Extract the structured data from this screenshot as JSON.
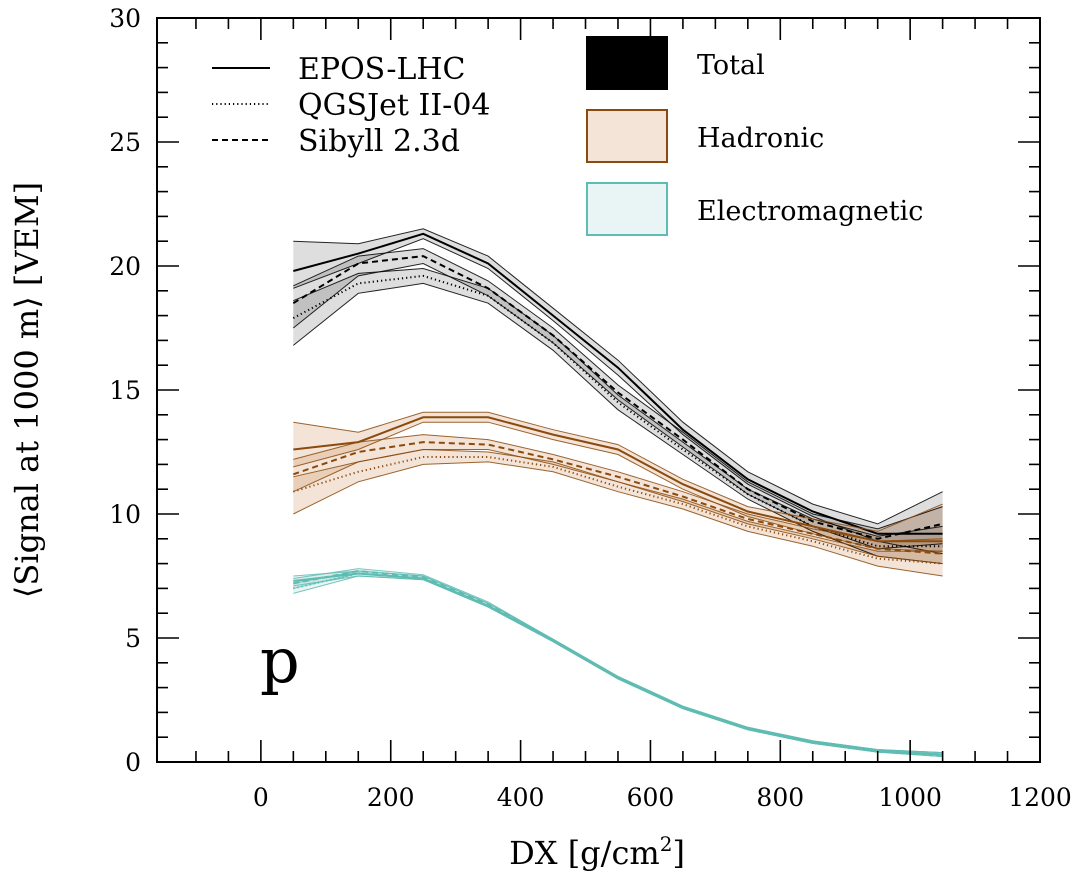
{
  "chart_data": {
    "type": "line",
    "title": "",
    "xlabel": "DX [g/cm",
    "xlabel_sup": "2",
    "xlabel_close": "]",
    "ylabel": "⟨Signal at 1000 m⟩ [VEM]",
    "xlim": [
      -160,
      1200
    ],
    "ylim": [
      0,
      30
    ],
    "x_ticks": [
      0,
      200,
      400,
      600,
      800,
      1000,
      1200
    ],
    "y_ticks": [
      0,
      5,
      10,
      15,
      20,
      25,
      30
    ],
    "annotation": "p",
    "x": [
      50,
      150,
      250,
      350,
      450,
      550,
      650,
      750,
      850,
      950,
      1050
    ],
    "legend_models": [
      {
        "name": "EPOS-LHC",
        "style": "solid"
      },
      {
        "name": "QGSJet II-04",
        "style": "dotted"
      },
      {
        "name": "Sibyll 2.3d",
        "style": "dashed"
      }
    ],
    "legend_components": [
      {
        "name": "Total",
        "key": "total"
      },
      {
        "name": "Hadronic",
        "key": "hadronic"
      },
      {
        "name": "Electromagnetic",
        "key": "em"
      }
    ],
    "components": {
      "total": {
        "line": "#000000",
        "fill": "#000000",
        "fill_opacity": 0.13,
        "series": [
          {
            "model": "EPOS-LHC",
            "values": [
              19.8,
              20.5,
              21.3,
              20.1,
              18.0,
              15.9,
              13.4,
              11.4,
              10.1,
              9.2,
              9.2
            ],
            "lower": [
              19.1,
              20.1,
              21.1,
              19.9,
              17.8,
              15.6,
              13.2,
              11.2,
              9.9,
              8.9,
              8.4
            ],
            "upper": [
              21.0,
              20.9,
              21.5,
              20.4,
              18.3,
              16.2,
              13.7,
              11.7,
              10.4,
              9.6,
              10.9
            ]
          },
          {
            "model": "QGSJet II-04",
            "values": [
              17.9,
              19.3,
              19.6,
              18.8,
              16.9,
              14.5,
              12.6,
              10.8,
              9.5,
              8.7,
              8.7
            ],
            "lower": [
              16.8,
              18.9,
              19.3,
              18.5,
              16.6,
              14.2,
              12.4,
              10.6,
              9.3,
              8.3,
              8.0
            ],
            "upper": [
              18.6,
              19.7,
              19.9,
              19.1,
              17.2,
              14.8,
              12.9,
              11.0,
              9.8,
              9.1,
              9.5
            ]
          },
          {
            "model": "Sibyll 2.3d",
            "values": [
              18.5,
              20.1,
              20.4,
              19.1,
              17.2,
              14.9,
              13.0,
              11.0,
              9.7,
              9.0,
              9.6
            ],
            "lower": [
              17.5,
              19.6,
              20.1,
              18.8,
              16.9,
              14.6,
              12.7,
              10.8,
              9.5,
              8.6,
              8.8
            ],
            "upper": [
              19.2,
              20.4,
              20.7,
              19.4,
              17.5,
              15.2,
              13.3,
              11.3,
              10.0,
              9.4,
              10.3
            ]
          }
        ]
      },
      "hadronic": {
        "line": "#8b4a0e",
        "fill": "#c9864a",
        "fill_opacity": 0.22,
        "series": [
          {
            "model": "EPOS-LHC",
            "values": [
              12.6,
              12.9,
              13.9,
              13.9,
              13.2,
              12.6,
              11.2,
              10.1,
              9.5,
              8.9,
              8.9
            ],
            "lower": [
              11.9,
              12.6,
              13.7,
              13.7,
              13.0,
              12.4,
              11.0,
              9.9,
              9.2,
              8.6,
              8.5
            ],
            "upper": [
              13.7,
              13.3,
              14.1,
              14.1,
              13.4,
              12.8,
              11.4,
              10.3,
              9.8,
              9.3,
              10.4
            ]
          },
          {
            "model": "QGSJet II-04",
            "values": [
              10.9,
              11.7,
              12.3,
              12.3,
              11.9,
              11.1,
              10.4,
              9.5,
              8.9,
              8.2,
              8.0
            ],
            "lower": [
              10.0,
              11.3,
              12.0,
              12.1,
              11.7,
              10.9,
              10.2,
              9.3,
              8.7,
              7.9,
              7.5
            ],
            "upper": [
              11.5,
              12.1,
              12.6,
              12.5,
              12.1,
              11.3,
              10.6,
              9.7,
              9.1,
              8.5,
              8.5
            ]
          },
          {
            "model": "Sibyll 2.3d",
            "values": [
              11.6,
              12.5,
              12.9,
              12.8,
              12.2,
              11.5,
              10.7,
              9.8,
              9.2,
              8.6,
              8.4
            ],
            "lower": [
              10.9,
              12.1,
              12.6,
              12.6,
              12.0,
              11.3,
              10.5,
              9.6,
              9.0,
              8.3,
              8.0
            ],
            "upper": [
              12.2,
              12.9,
              13.2,
              13.0,
              12.4,
              11.7,
              10.9,
              10.0,
              9.4,
              8.9,
              9.0
            ]
          }
        ]
      },
      "em": {
        "line": "#5fbcb2",
        "fill": "#a6d9d2",
        "fill_opacity": 0.25,
        "series": [
          {
            "model": "EPOS-LHC",
            "values": [
              7.3,
              7.6,
              7.4,
              6.3,
              4.9,
              3.4,
              2.2,
              1.35,
              0.8,
              0.45,
              0.3
            ],
            "lower": [
              7.1,
              7.5,
              7.35,
              6.25,
              4.85,
              3.35,
              2.15,
              1.3,
              0.75,
              0.4,
              0.22
            ],
            "upper": [
              7.5,
              7.7,
              7.5,
              6.4,
              4.95,
              3.45,
              2.25,
              1.4,
              0.85,
              0.5,
              0.38
            ]
          },
          {
            "model": "QGSJet II-04",
            "values": [
              7.0,
              7.6,
              7.4,
              6.3,
              4.9,
              3.4,
              2.2,
              1.35,
              0.8,
              0.45,
              0.3
            ],
            "lower": [
              6.8,
              7.5,
              7.35,
              6.25,
              4.85,
              3.35,
              2.15,
              1.3,
              0.75,
              0.4,
              0.22
            ],
            "upper": [
              7.2,
              7.7,
              7.5,
              6.4,
              4.95,
              3.45,
              2.25,
              1.4,
              0.85,
              0.5,
              0.38
            ]
          },
          {
            "model": "Sibyll 2.3d",
            "values": [
              7.2,
              7.7,
              7.45,
              6.35,
              4.9,
              3.4,
              2.2,
              1.35,
              0.8,
              0.45,
              0.3
            ],
            "lower": [
              7.0,
              7.6,
              7.4,
              6.3,
              4.85,
              3.35,
              2.15,
              1.3,
              0.75,
              0.4,
              0.22
            ],
            "upper": [
              7.4,
              7.8,
              7.55,
              6.45,
              4.95,
              3.45,
              2.25,
              1.4,
              0.85,
              0.5,
              0.38
            ]
          }
        ]
      }
    }
  }
}
